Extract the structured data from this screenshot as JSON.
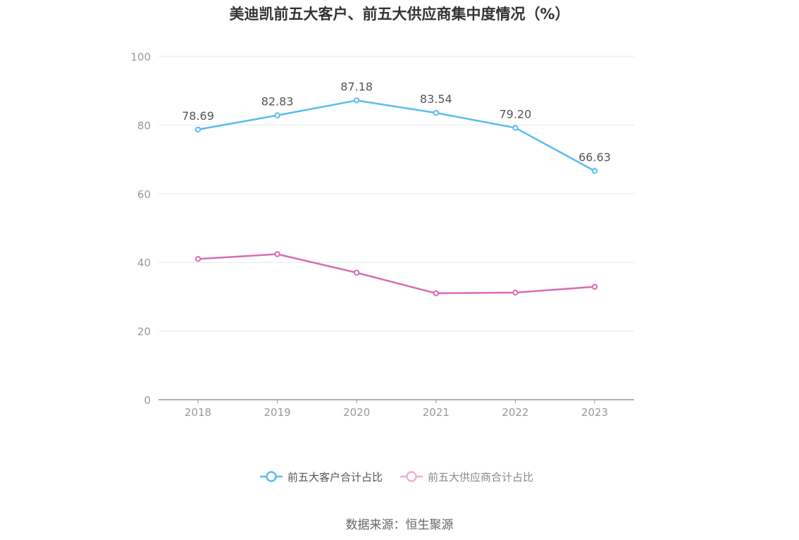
{
  "chart_data": {
    "type": "line",
    "title": "美迪凯前五大客户、前五大供应商集中度情况（%）",
    "x": [
      "2018",
      "2019",
      "2020",
      "2021",
      "2022",
      "2023"
    ],
    "ylim": [
      0,
      100
    ],
    "yticks": [
      0,
      20,
      40,
      60,
      80,
      100
    ],
    "grid": true,
    "legend_position": "bottom-center",
    "series": [
      {
        "name": "前五大客户合计占比",
        "values": [
          78.69,
          82.83,
          87.18,
          83.54,
          79.2,
          66.63
        ],
        "labels": [
          "78.69",
          "82.83",
          "87.18",
          "83.54",
          "79.20",
          "66.63"
        ],
        "show_labels": true,
        "color": "#5bbcf0",
        "legend_color": "#5bbcf0"
      },
      {
        "name": "前五大供应商合计占比",
        "values": [
          41.0,
          42.4,
          37.0,
          31.0,
          31.2,
          32.9
        ],
        "show_labels": false,
        "color": "#d96bb6",
        "legend_color": "#eeb1d8"
      }
    ]
  },
  "source": "数据来源：恒生聚源"
}
